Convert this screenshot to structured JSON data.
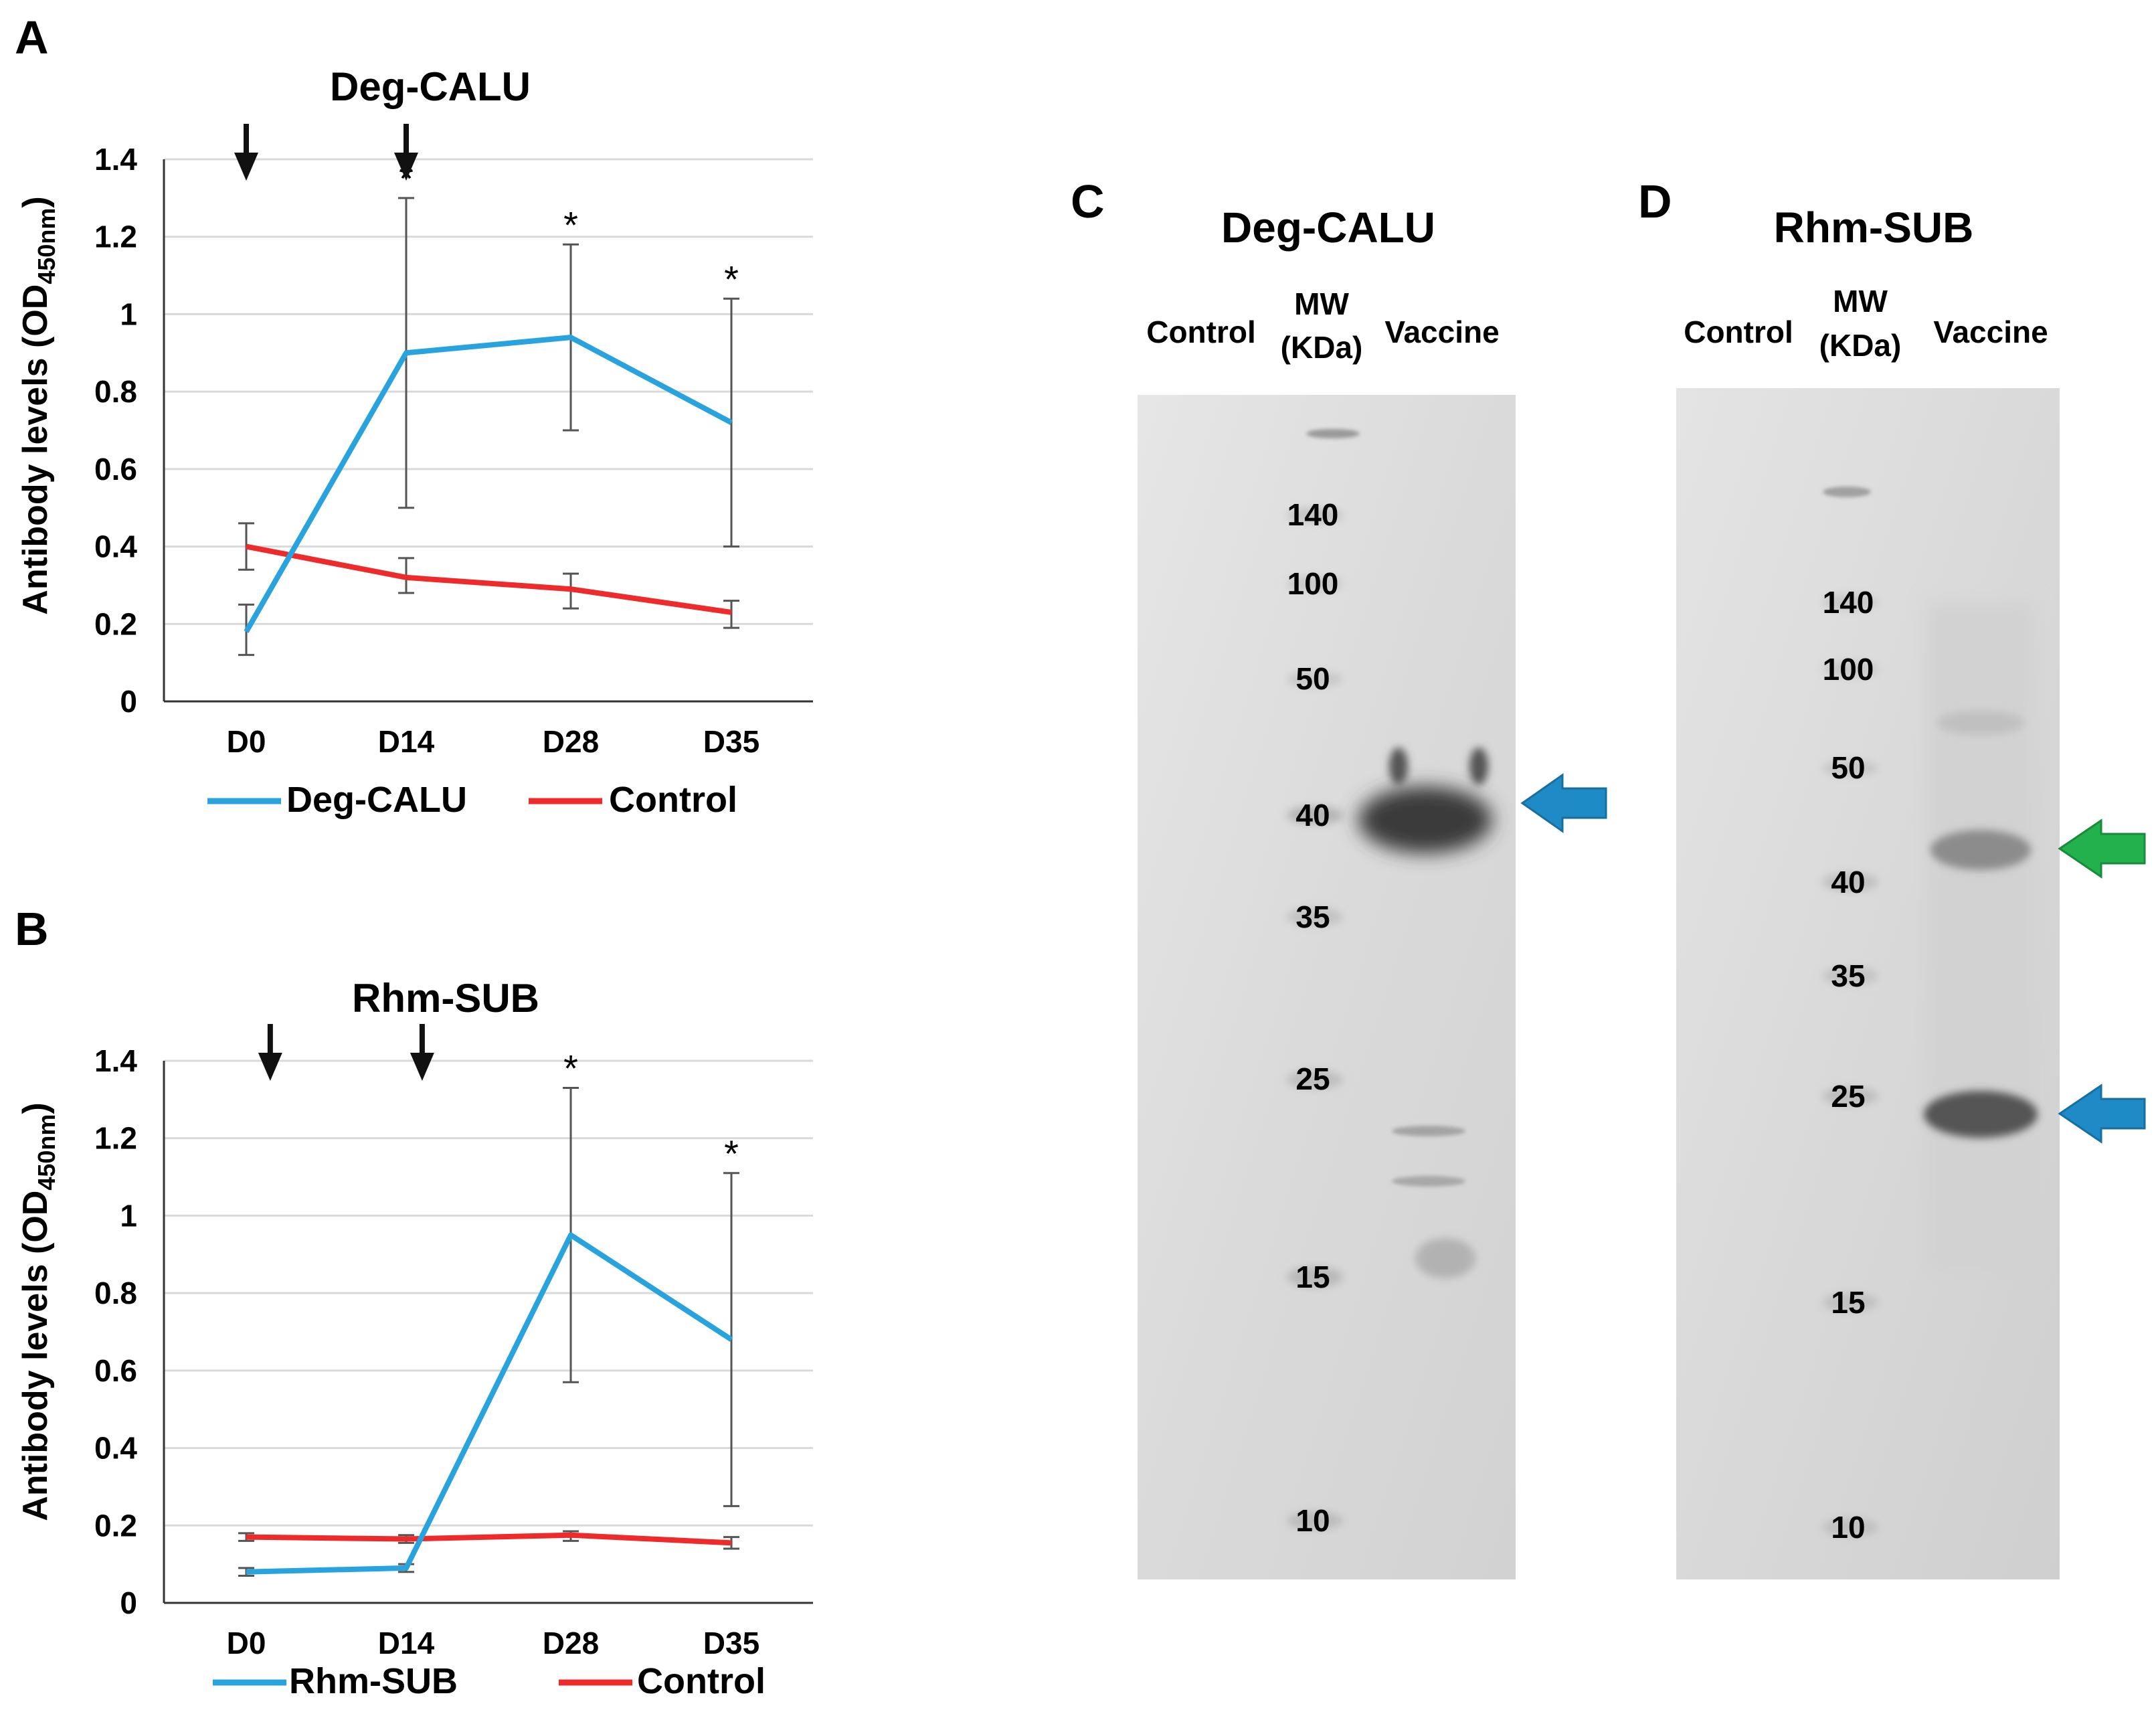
{
  "chart_data": [
    {
      "panel": "A",
      "type": "line",
      "title": "Deg-CALU",
      "ylabel": "Antibody levels (OD",
      "ylabel_sub": "450nm",
      "ylabel_end": ")",
      "categories": [
        "D0",
        "D14",
        "D28",
        "D35"
      ],
      "ylim": [
        0,
        1.4
      ],
      "yticks": [
        "0",
        "0.2",
        "0.4",
        "0.6",
        "0.8",
        "1",
        "1.2",
        "1.4"
      ],
      "grid": true,
      "series": [
        {
          "name": "Deg-CALU",
          "color": "#29a3dd",
          "values": [
            0.18,
            0.9,
            0.94,
            0.72
          ],
          "err_low": [
            0.12,
            0.5,
            0.7,
            0.4
          ],
          "err_high": [
            0.25,
            1.3,
            1.18,
            1.04
          ]
        },
        {
          "name": "Control",
          "color": "#ee2a2a",
          "values": [
            0.4,
            0.32,
            0.29,
            0.23
          ],
          "err_low": [
            0.34,
            0.28,
            0.24,
            0.19
          ],
          "err_high": [
            0.46,
            0.37,
            0.33,
            0.26
          ]
        }
      ],
      "significance": {
        "marker": "*",
        "categories": [
          "D14",
          "D28",
          "D35"
        ]
      },
      "arrows": [
        0.0,
        1.0
      ],
      "legend": "bottom"
    },
    {
      "panel": "B",
      "type": "line",
      "title": "Rhm-SUB",
      "ylabel": "Antibody levels (OD",
      "ylabel_sub": "450nm",
      "ylabel_end": ")",
      "categories": [
        "D0",
        "D14",
        "D28",
        "D35"
      ],
      "ylim": [
        0,
        1.4
      ],
      "yticks": [
        "0",
        "0.2",
        "0.4",
        "0.6",
        "0.8",
        "1",
        "1.2",
        "1.4"
      ],
      "grid": true,
      "series": [
        {
          "name": "Rhm-SUB",
          "color": "#29a3dd",
          "values": [
            0.08,
            0.09,
            0.95,
            0.68
          ],
          "err_low": [
            0.07,
            0.08,
            0.57,
            0.25
          ],
          "err_high": [
            0.09,
            0.1,
            1.33,
            1.11
          ]
        },
        {
          "name": "Control",
          "color": "#ee2a2a",
          "values": [
            0.17,
            0.165,
            0.175,
            0.155
          ],
          "err_low": [
            0.16,
            0.155,
            0.16,
            0.14
          ],
          "err_high": [
            0.18,
            0.175,
            0.185,
            0.17
          ]
        }
      ],
      "significance": {
        "marker": "*",
        "categories": [
          "D28",
          "D35"
        ]
      },
      "arrows": [
        0.15,
        1.1
      ],
      "legend": "bottom"
    }
  ],
  "gels": [
    {
      "panel": "C",
      "title": "Deg-CALU",
      "lanes": {
        "control": "Control",
        "mw_line1": "MW",
        "mw_line2": "(KDa)",
        "vaccine": "Vaccine"
      },
      "markers": [
        "140",
        "100",
        "50",
        "40",
        "35",
        "25",
        "15",
        "10"
      ],
      "arrows": [
        {
          "color": "#1e8bc6",
          "label": "blue-arrow"
        }
      ]
    },
    {
      "panel": "D",
      "title": "Rhm-SUB",
      "lanes": {
        "control": "Control",
        "mw_line1": "MW",
        "mw_line2": "(KDa)",
        "vaccine": "Vaccine"
      },
      "markers": [
        "140",
        "100",
        "50",
        "40",
        "35",
        "25",
        "15",
        "10"
      ],
      "arrows": [
        {
          "color": "#22b14c",
          "label": "green-arrow"
        },
        {
          "color": "#1e8bc6",
          "label": "blue-arrow"
        }
      ]
    }
  ]
}
